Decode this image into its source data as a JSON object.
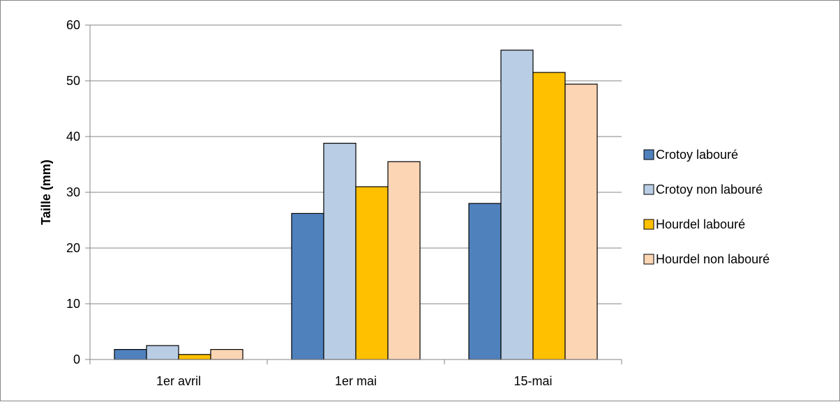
{
  "chart_data": {
    "type": "bar",
    "title": "",
    "xlabel": "",
    "ylabel": "Taille (mm)",
    "categories": [
      "1er avril",
      "1er mai",
      "15-mai"
    ],
    "ylim": [
      0,
      60
    ],
    "yticks": [
      0,
      10,
      20,
      30,
      40,
      50,
      60
    ],
    "grid": true,
    "legend_position": "right",
    "series": [
      {
        "name": "Crotoy labouré",
        "color": "#4F81BD",
        "values": [
          1.8,
          26.2,
          28.0
        ]
      },
      {
        "name": "Crotoy non labouré",
        "color": "#B9CDE5",
        "values": [
          2.5,
          38.8,
          55.5
        ]
      },
      {
        "name": "Hourdel labouré",
        "color": "#FFC000",
        "values": [
          0.9,
          31.0,
          51.5
        ]
      },
      {
        "name": "Hourdel non labouré",
        "color": "#FCD5B5",
        "values": [
          1.8,
          35.5,
          49.4
        ]
      }
    ]
  }
}
